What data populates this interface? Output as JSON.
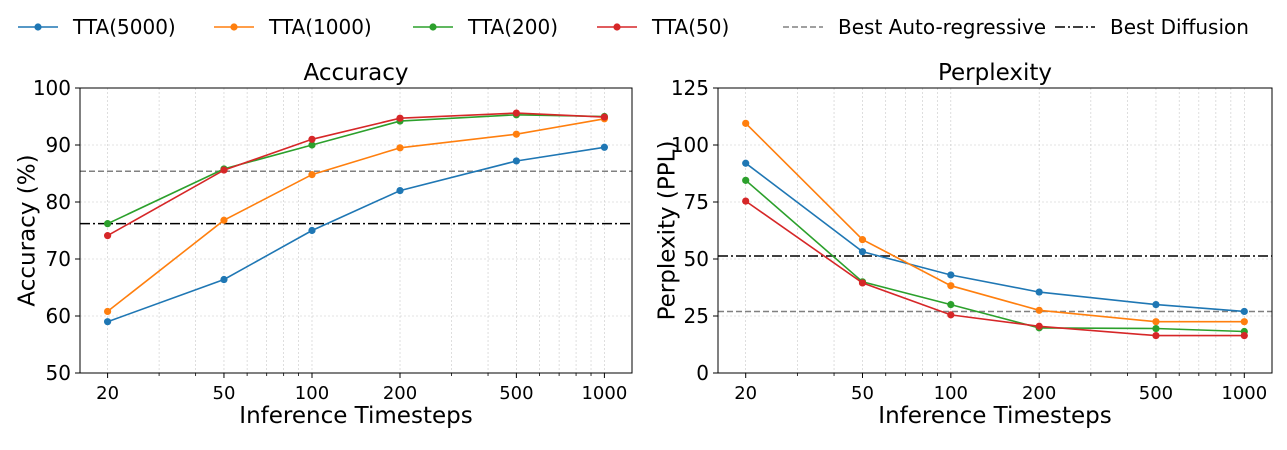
{
  "legend": {
    "placement": "top-center",
    "entries": [
      {
        "label": "TTA(5000)",
        "color": "#1f77b4",
        "style": "solid-marker"
      },
      {
        "label": "TTA(1000)",
        "color": "#ff7f0e",
        "style": "solid-marker"
      },
      {
        "label": "TTA(200)",
        "color": "#2ca02c",
        "style": "solid-marker"
      },
      {
        "label": "TTA(50)",
        "color": "#d62728",
        "style": "solid-marker"
      },
      {
        "label": "Best Auto-regressive",
        "color": "#808080",
        "style": "dashed"
      },
      {
        "label": "Best Diffusion",
        "color": "#000000",
        "style": "dashdot"
      }
    ]
  },
  "chart_data": [
    {
      "type": "line",
      "title": "Accuracy",
      "xlabel": "Inference Timesteps",
      "ylabel": "Accuracy (%)",
      "xscale": "log",
      "x": [
        20,
        50,
        100,
        200,
        500,
        1000
      ],
      "xticks": [
        "20",
        "50",
        "100",
        "200",
        "500",
        "1000"
      ],
      "ylim": [
        50,
        100
      ],
      "yticks": [
        50,
        60,
        70,
        80,
        90,
        100
      ],
      "grid": true,
      "series": [
        {
          "name": "TTA(5000)",
          "color": "#1f77b4",
          "values": [
            59.0,
            66.4,
            75.0,
            82.0,
            87.2,
            89.6
          ]
        },
        {
          "name": "TTA(1000)",
          "color": "#ff7f0e",
          "values": [
            60.8,
            76.8,
            84.8,
            89.5,
            91.9,
            94.6
          ]
        },
        {
          "name": "TTA(200)",
          "color": "#2ca02c",
          "values": [
            76.2,
            85.8,
            90.0,
            94.2,
            95.3,
            95.0
          ]
        },
        {
          "name": "TTA(50)",
          "color": "#d62728",
          "values": [
            74.1,
            85.6,
            91.0,
            94.7,
            95.6,
            94.9
          ]
        }
      ],
      "reference_lines": [
        {
          "name": "Best Auto-regressive",
          "value": 85.4,
          "color": "#808080",
          "style": "dashed"
        },
        {
          "name": "Best Diffusion",
          "value": 76.2,
          "color": "#000000",
          "style": "dashdot"
        }
      ]
    },
    {
      "type": "line",
      "title": "Perplexity",
      "xlabel": "Inference Timesteps",
      "ylabel": "Perplexity (PPL)",
      "xscale": "log",
      "x": [
        20,
        50,
        100,
        200,
        500,
        1000
      ],
      "xticks": [
        "20",
        "50",
        "100",
        "200",
        "500",
        "1000"
      ],
      "ylim": [
        0,
        125
      ],
      "yticks": [
        0,
        25,
        50,
        75,
        100,
        125
      ],
      "grid": true,
      "series": [
        {
          "name": "TTA(5000)",
          "color": "#1f77b4",
          "values": [
            92.0,
            53.2,
            43.0,
            35.5,
            30.0,
            27.0
          ]
        },
        {
          "name": "TTA(1000)",
          "color": "#ff7f0e",
          "values": [
            109.5,
            58.5,
            38.3,
            27.5,
            22.5,
            22.5
          ]
        },
        {
          "name": "TTA(200)",
          "color": "#2ca02c",
          "values": [
            84.5,
            40.0,
            30.0,
            19.8,
            19.5,
            18.2
          ]
        },
        {
          "name": "TTA(50)",
          "color": "#d62728",
          "values": [
            75.4,
            39.5,
            25.5,
            20.5,
            16.4,
            16.4
          ]
        }
      ],
      "reference_lines": [
        {
          "name": "Best Auto-regressive",
          "value": 27.0,
          "color": "#808080",
          "style": "dashed"
        },
        {
          "name": "Best Diffusion",
          "value": 51.3,
          "color": "#000000",
          "style": "dashdot"
        }
      ]
    }
  ]
}
